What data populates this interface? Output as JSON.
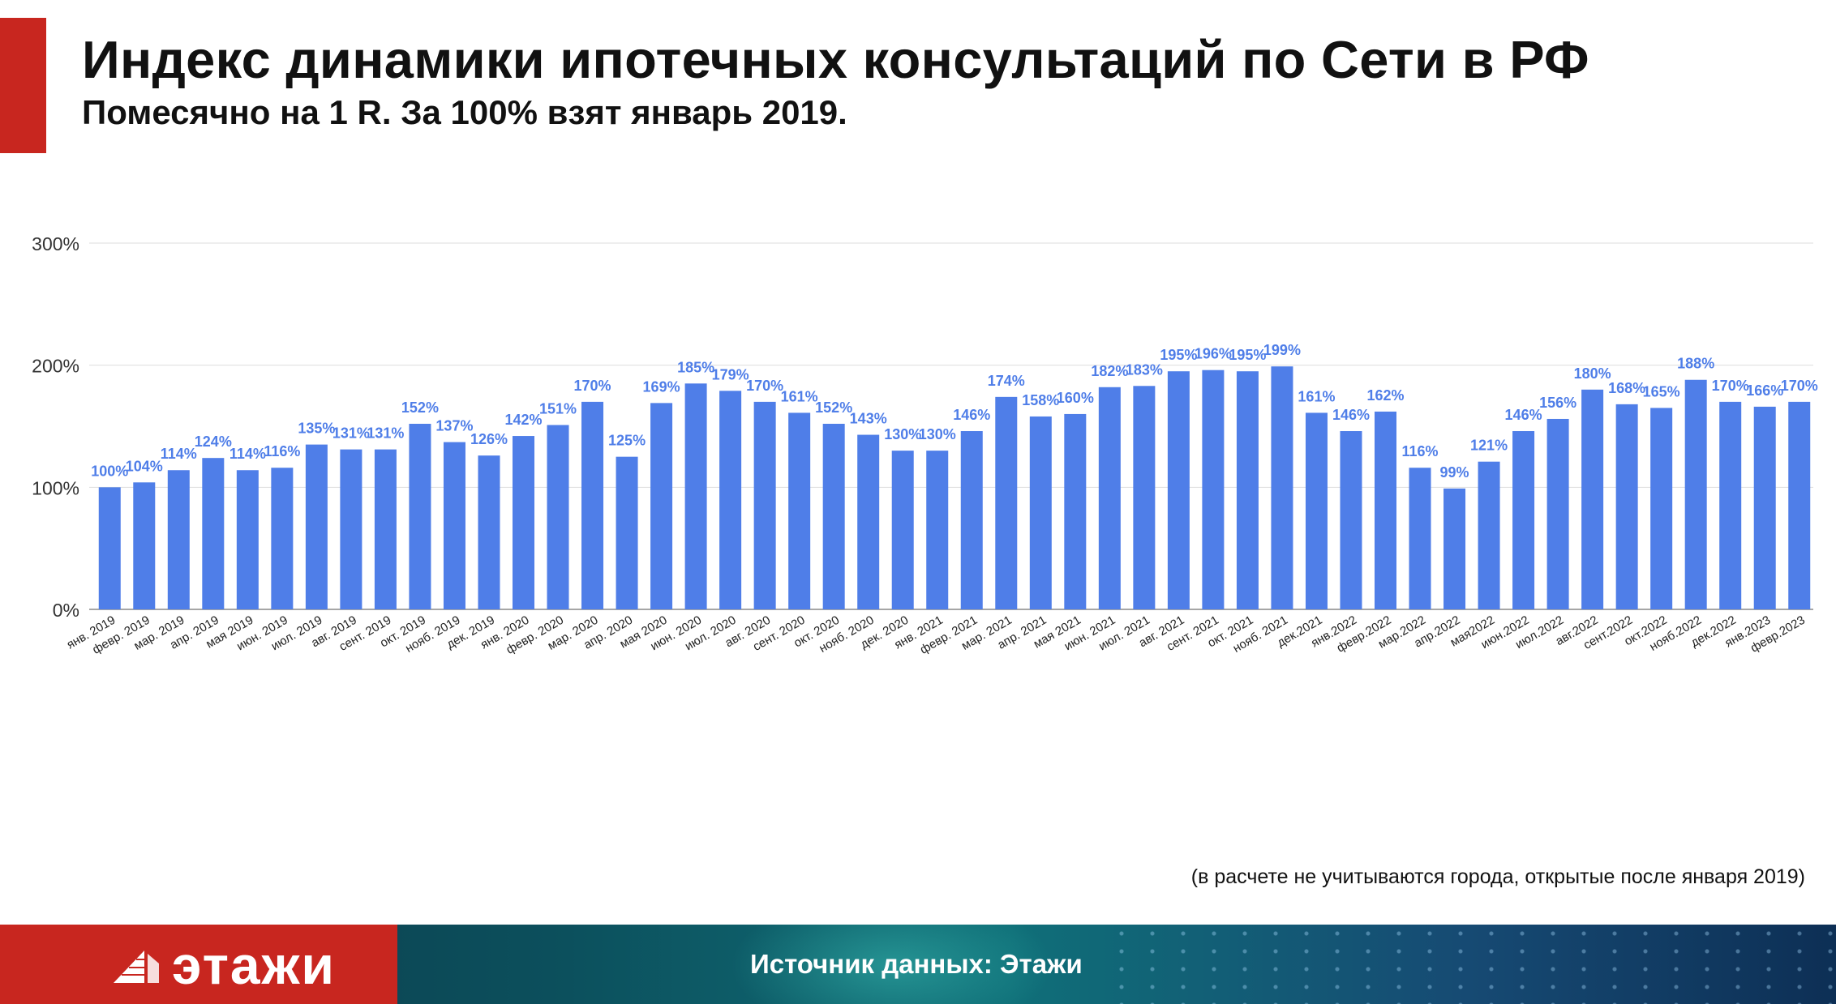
{
  "header": {
    "title": "Индекс динамики ипотечных консультаций по Сети в РФ",
    "subtitle": "Помесячно на 1 R. За 100% взят январь 2019."
  },
  "footnote": "(в расчете не учитываются города, открытые после января 2019)",
  "footer": {
    "logo_text": "этажи",
    "source_text": "Источник данных: Этажи"
  },
  "colors": {
    "bar": "#4f7ee8",
    "label": "#4f7ee8",
    "brand_red": "#c8261f",
    "grid": "#dddddd"
  },
  "chart_data": {
    "type": "bar",
    "categories": [
      "янв. 2019",
      "февр. 2019",
      "мар. 2019",
      "апр. 2019",
      "мая 2019",
      "июн. 2019",
      "июл. 2019",
      "авг. 2019",
      "сент. 2019",
      "окт. 2019",
      "нояб. 2019",
      "дек. 2019",
      "янв. 2020",
      "февр. 2020",
      "мар. 2020",
      "апр. 2020",
      "мая 2020",
      "июн. 2020",
      "июл. 2020",
      "авг. 2020",
      "сент. 2020",
      "окт. 2020",
      "нояб. 2020",
      "дек. 2020",
      "янв. 2021",
      "февр. 2021",
      "мар. 2021",
      "апр. 2021",
      "мая 2021",
      "июн. 2021",
      "июл. 2021",
      "авг. 2021",
      "сент. 2021",
      "окт. 2021",
      "нояб. 2021",
      "дек.2021",
      "янв.2022",
      "февр.2022",
      "мар.2022",
      "апр.2022",
      "мая2022",
      "июн.2022",
      "июл.2022",
      "авг.2022",
      "сент.2022",
      "окт.2022",
      "нояб.2022",
      "дек.2022",
      "янв.2023",
      "февр.2023"
    ],
    "values": [
      100,
      104,
      114,
      124,
      114,
      116,
      135,
      131,
      131,
      152,
      137,
      126,
      142,
      151,
      170,
      125,
      169,
      185,
      179,
      170,
      161,
      152,
      143,
      130,
      130,
      146,
      174,
      158,
      160,
      182,
      183,
      195,
      196,
      195,
      199,
      161,
      146,
      162,
      116,
      99,
      121,
      146,
      156,
      180,
      168,
      165,
      188,
      170,
      166,
      170
    ],
    "data_labels": [
      "100%",
      "104%",
      "114%",
      "124%",
      "114%",
      "116%",
      "135%",
      "131%",
      "131%",
      "152%",
      "137%",
      "126%",
      "142%",
      "151%",
      "170%",
      "125%",
      "169%",
      "185%",
      "179%",
      "170%",
      "161%",
      "152%",
      "143%",
      "130%",
      "130%",
      "146%",
      "174%",
      "158%",
      "160%",
      "182%",
      "183%",
      "195%",
      "196%",
      "195%",
      "199%",
      "161%",
      "146%",
      "162%",
      "116%",
      "99%",
      "121%",
      "146%",
      "156%",
      "180%",
      "168%",
      "165%",
      "188%",
      "170%",
      "166%",
      "170%"
    ],
    "yticks": [
      {
        "value": 0,
        "label": "0%"
      },
      {
        "value": 100,
        "label": "100%"
      },
      {
        "value": 200,
        "label": "200%"
      },
      {
        "value": 300,
        "label": "300%"
      }
    ],
    "ylim": [
      0,
      300
    ],
    "grid": true,
    "legend": "none"
  }
}
